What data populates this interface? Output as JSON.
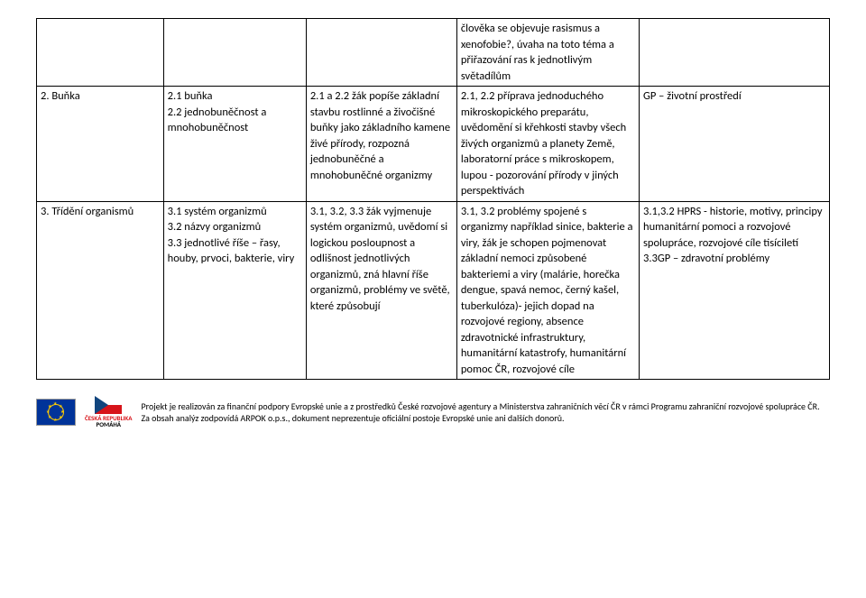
{
  "row0": {
    "c4": "člověka se objevuje rasismus a xenofobie?, úvaha na toto téma a přiřazování ras k jednotlivým světadílům"
  },
  "row1": {
    "c1": "2. Buňka",
    "c2": "2.1 buňka\n2.2 jednobuněčnost a mnohobuněčnost",
    "c3": "2.1 a 2.2 žák popíše základní stavbu rostlinné a živočišné buňky jako základního kamene živé přírody, rozpozná jednobuněčné a mnohobuněčné organizmy",
    "c4": "2.1, 2.2 příprava jednoduchého mikroskopického preparátu, uvědomění si křehkosti stavby všech živých organizmů a planety Země, laboratorní práce s mikroskopem, lupou - pozorování přírody v jiných perspektivách",
    "c5": "GP – životní prostředí"
  },
  "row2": {
    "c1": "3. Třídění organismů",
    "c2": "3.1 systém organizmů\n3.2 názvy organizmů\n3.3 jednotlivé říše – řasy, houby, prvoci, bakterie, viry",
    "c3": "3.1, 3.2, 3.3 žák vyjmenuje systém organizmů, uvědomí si logickou posloupnost a odlišnost jednotlivých organizmů, zná hlavní říše organizmů, problémy ve světě, které způsobují",
    "c4": "3.1, 3.2 problémy spojené s organizmy například sinice, bakterie a viry, žák je schopen pojmenovat základní nemoci způsobené bakteriemi a viry (malárie, horečka dengue, spavá nemoc, černý kašel, tuberkulóza)- jejich dopad na rozvojové regiony, absence zdravotnické infrastruktury, humanitární katastrofy, humanitární pomoc ČR, rozvojové cíle",
    "c5": "3.1,3.2 HPRS - historie, motivy, principy humanitární pomoci a rozvojové spolupráce, rozvojové cíle tisíciletí\n3.3GP – zdravotní problémy"
  },
  "footer": "Projekt je realizován za finanční podpory Evropské unie a z prostředků České rozvojové agentury a Ministerstva zahraničních věcí ČR v rámci Programu zahraniční rozvojové spolupráce ČR. Za obsah analýz zodpovídá ARPOK o.p.s., dokument neprezentuje oficiální postoje Evropské unie ani dalších donorů.",
  "cz1": "ČESKÁ REPUBLIKA",
  "cz2": "POMÁHÁ"
}
